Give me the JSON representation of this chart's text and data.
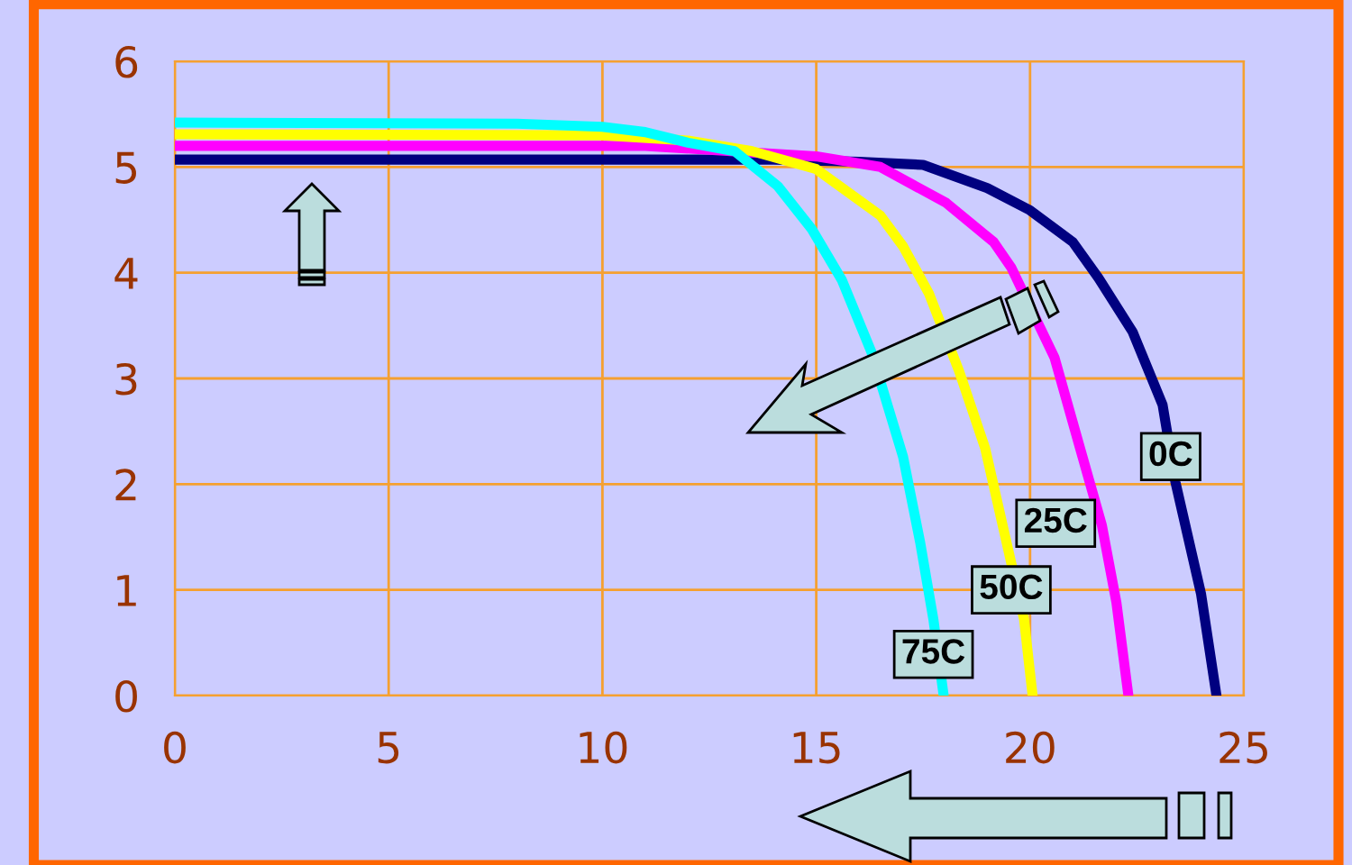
{
  "chart_data": {
    "type": "line",
    "xlim": [
      0,
      25
    ],
    "ylim": [
      0,
      6
    ],
    "xticks": [
      0,
      5,
      10,
      15,
      20,
      25
    ],
    "yticks": [
      0,
      1,
      2,
      3,
      4,
      5,
      6
    ],
    "grid": true,
    "marker": "none",
    "line_style": "solid",
    "series": [
      {
        "color": "#000080",
        "x": [
          0,
          14,
          16,
          17.5,
          19,
          20,
          21,
          21.6,
          22.4,
          23.1,
          23.4,
          24.0,
          24.36
        ],
        "values": [
          5.07,
          5.07,
          5.05,
          5.02,
          4.8,
          4.59,
          4.29,
          3.95,
          3.44,
          2.75,
          2.02,
          0.96,
          0
        ]
      },
      {
        "color": "#ff00ff",
        "x": [
          0,
          11,
          13,
          15,
          16.5,
          18.04,
          19.15,
          19.56,
          20.57,
          21.17,
          21.68,
          22.02,
          22.3
        ],
        "values": [
          5.2,
          5.2,
          5.15,
          5.1,
          5.0,
          4.66,
          4.29,
          4.05,
          3.2,
          2.34,
          1.61,
          0.88,
          0
        ]
      },
      {
        "color": "#ffff00",
        "x": [
          0,
          10,
          12,
          13.5,
          15,
          16.5,
          17.03,
          17.64,
          18.34,
          18.95,
          19.45,
          19.86,
          20.06
        ],
        "values": [
          5.31,
          5.3,
          5.25,
          5.15,
          4.98,
          4.54,
          4.25,
          3.8,
          3.07,
          2.34,
          1.45,
          0.72,
          0
        ]
      },
      {
        "color": "#00ffff",
        "x": [
          0,
          8,
          10,
          11,
          12,
          13.09,
          14.1,
          14.9,
          15.6,
          16.3,
          17.03,
          17.43,
          17.74,
          17.98
        ],
        "values": [
          5.42,
          5.41,
          5.38,
          5.33,
          5.23,
          5.15,
          4.82,
          4.41,
          3.93,
          3.24,
          2.26,
          1.45,
          0.72,
          0
        ]
      }
    ],
    "annotations": [
      {
        "text": "0C",
        "x": 23.29,
        "y": 2.26
      },
      {
        "text": "25C",
        "x": 20.6,
        "y": 1.63
      },
      {
        "text": "50C",
        "x": 19.56,
        "y": 1.0
      },
      {
        "text": "75C",
        "x": 17.74,
        "y": 0.39
      }
    ]
  }
}
